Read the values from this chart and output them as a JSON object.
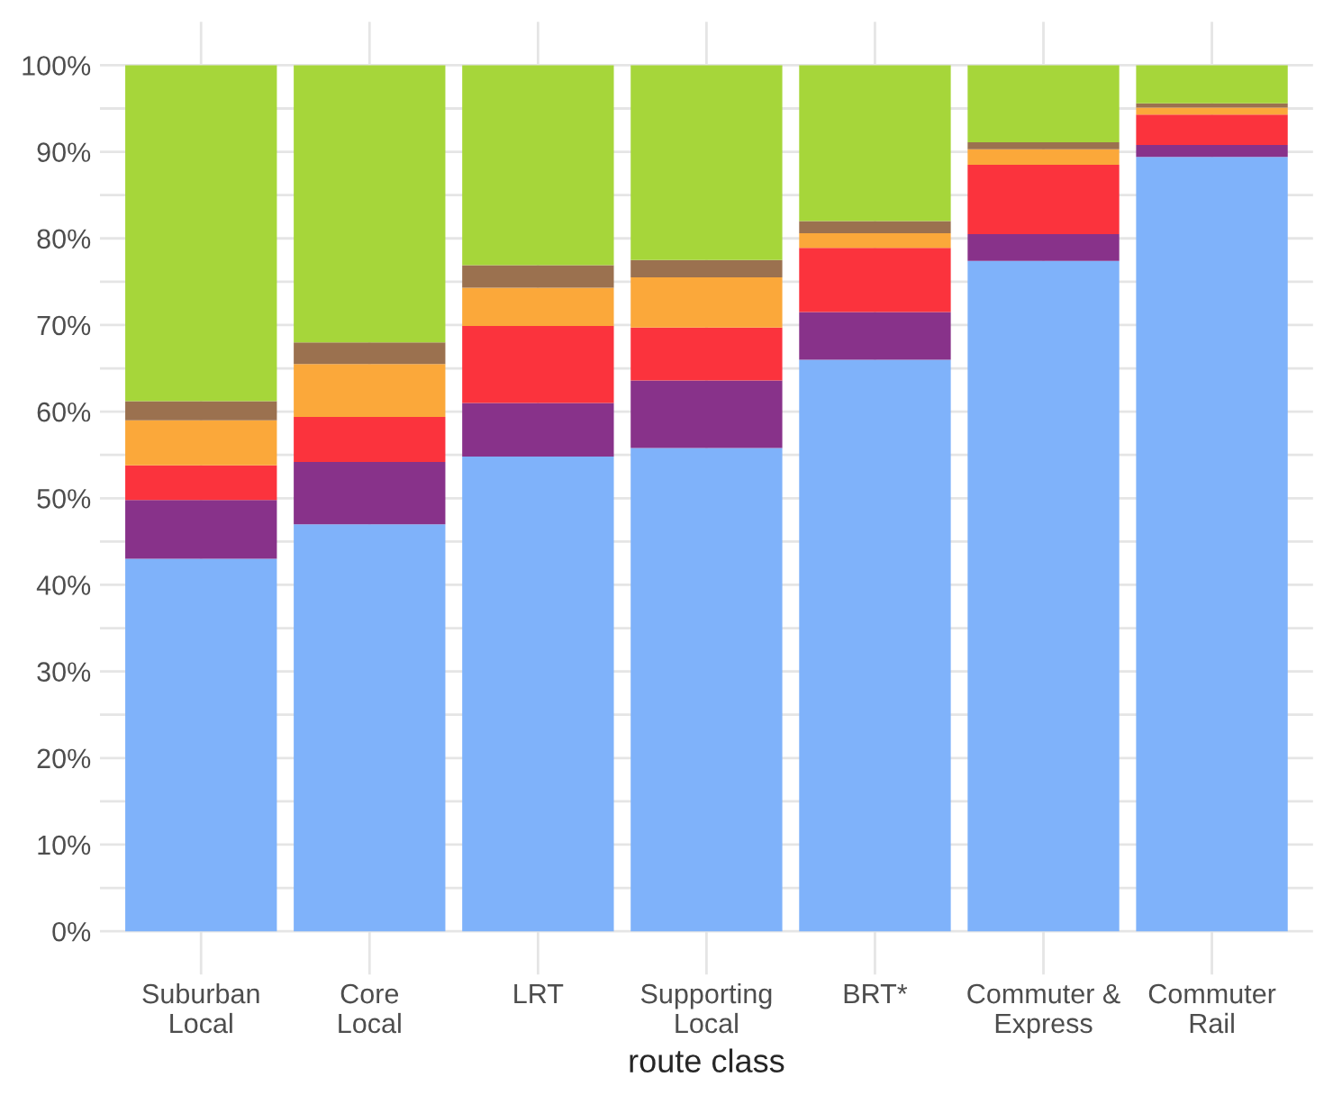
{
  "chart_data": {
    "type": "bar",
    "stacked": true,
    "xlabel": "route class",
    "categories": [
      "Suburban\nLocal",
      "Core\nLocal",
      "LRT",
      "Supporting\nLocal",
      "BRT*",
      "Commuter &\nExpress",
      "Commuter\nRail"
    ],
    "series": [
      {
        "color": "#7fb2fa",
        "values": [
          43,
          47,
          54.8,
          55.8,
          66,
          77.4,
          89.4
        ]
      },
      {
        "color": "#88328a",
        "values": [
          6.8,
          7.2,
          6.2,
          7.8,
          5.5,
          3.1,
          1.4
        ]
      },
      {
        "color": "#fb333d",
        "values": [
          4,
          5.2,
          8.9,
          6.1,
          7.4,
          8,
          3.5
        ]
      },
      {
        "color": "#fba83a",
        "values": [
          5.2,
          6.1,
          4.4,
          5.8,
          1.7,
          1.8,
          0.8
        ]
      },
      {
        "color": "#9b714f",
        "values": [
          2.2,
          2.5,
          2.6,
          2,
          1.4,
          0.8,
          0.5
        ]
      },
      {
        "color": "#a6d63a",
        "values": [
          38.8,
          32,
          23.1,
          22.5,
          18,
          8.9,
          4.4
        ]
      }
    ],
    "ylim": [
      -5,
      105
    ],
    "yticks": [
      {
        "value": 0,
        "label": "0%"
      },
      {
        "value": 5,
        "label": null
      },
      {
        "value": 10,
        "label": "10%"
      },
      {
        "value": 15,
        "label": null
      },
      {
        "value": 20,
        "label": "20%"
      },
      {
        "value": 25,
        "label": null
      },
      {
        "value": 30,
        "label": "30%"
      },
      {
        "value": 35,
        "label": null
      },
      {
        "value": 40,
        "label": "40%"
      },
      {
        "value": 45,
        "label": null
      },
      {
        "value": 50,
        "label": "50%"
      },
      {
        "value": 55,
        "label": null
      },
      {
        "value": 60,
        "label": "60%"
      },
      {
        "value": 65,
        "label": null
      },
      {
        "value": 70,
        "label": "70%"
      },
      {
        "value": 75,
        "label": null
      },
      {
        "value": 80,
        "label": "80%"
      },
      {
        "value": 85,
        "label": null
      },
      {
        "value": 90,
        "label": "90%"
      },
      {
        "value": 95,
        "label": null
      },
      {
        "value": 100,
        "label": "100%"
      }
    ],
    "grid": true
  }
}
